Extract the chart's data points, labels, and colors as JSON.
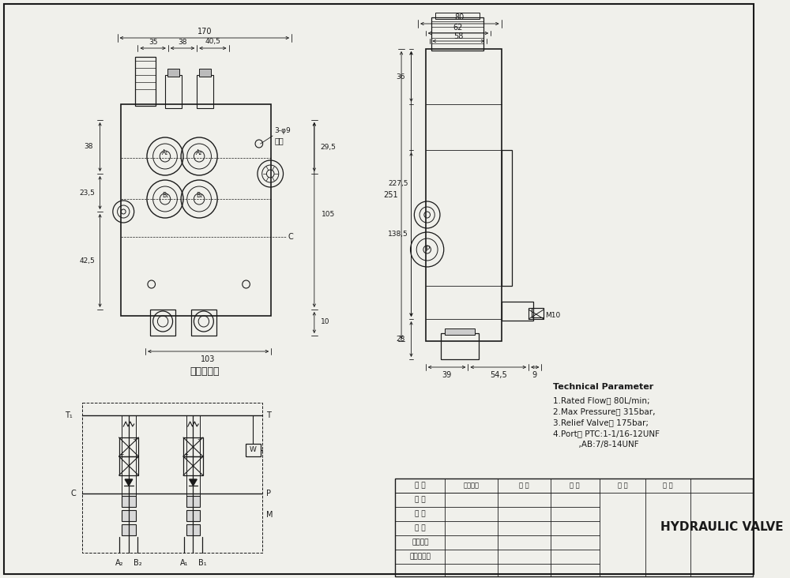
{
  "bg_color": "#f0f0eb",
  "line_color": "#1a1a1a",
  "front_view": {
    "label": "液压原理图",
    "dim_170": "170",
    "dim_35": "35",
    "dim_38": "38",
    "dim_405": "40,5",
    "dim_38v": "38",
    "dim_235": "23,5",
    "dim_425": "42,5",
    "dim_105": "105",
    "dim_295": "29,5",
    "dim_103": "103",
    "dim_10": "10",
    "dim_3phi9": "3-φ9",
    "dim_tonkong": "通孔"
  },
  "side_view": {
    "dim_80": "80",
    "dim_62": "62",
    "dim_58": "58",
    "dim_251": "251",
    "dim_2275": "227,5",
    "dim_1385": "138,5",
    "dim_36": "36",
    "dim_28": "28",
    "dim_39": "39",
    "dim_545": "54,5",
    "dim_9": "9",
    "dim_M10": "M10"
  },
  "tech_params": {
    "title": "Technical Parameter",
    "p1": "1.Rated Flow： 80L/min;",
    "p2": "2.Max Pressure： 315bar,",
    "p3": "3.Relief Valve： 175bar;",
    "p4": "4.Port： PTC:1-1/16-12UNF",
    "p5": "          ,AB:7/8-14UNF"
  },
  "table": {
    "rows": [
      "设 计",
      "制 图",
      "描 图",
      "校 对",
      "工艺检查",
      "标准化检查"
    ],
    "col1": "图样符记",
    "col2": "重 量",
    "col3": "比 例",
    "col4": "共 张",
    "col5": "第 张",
    "company": "HYDRAULIC VALVE"
  }
}
